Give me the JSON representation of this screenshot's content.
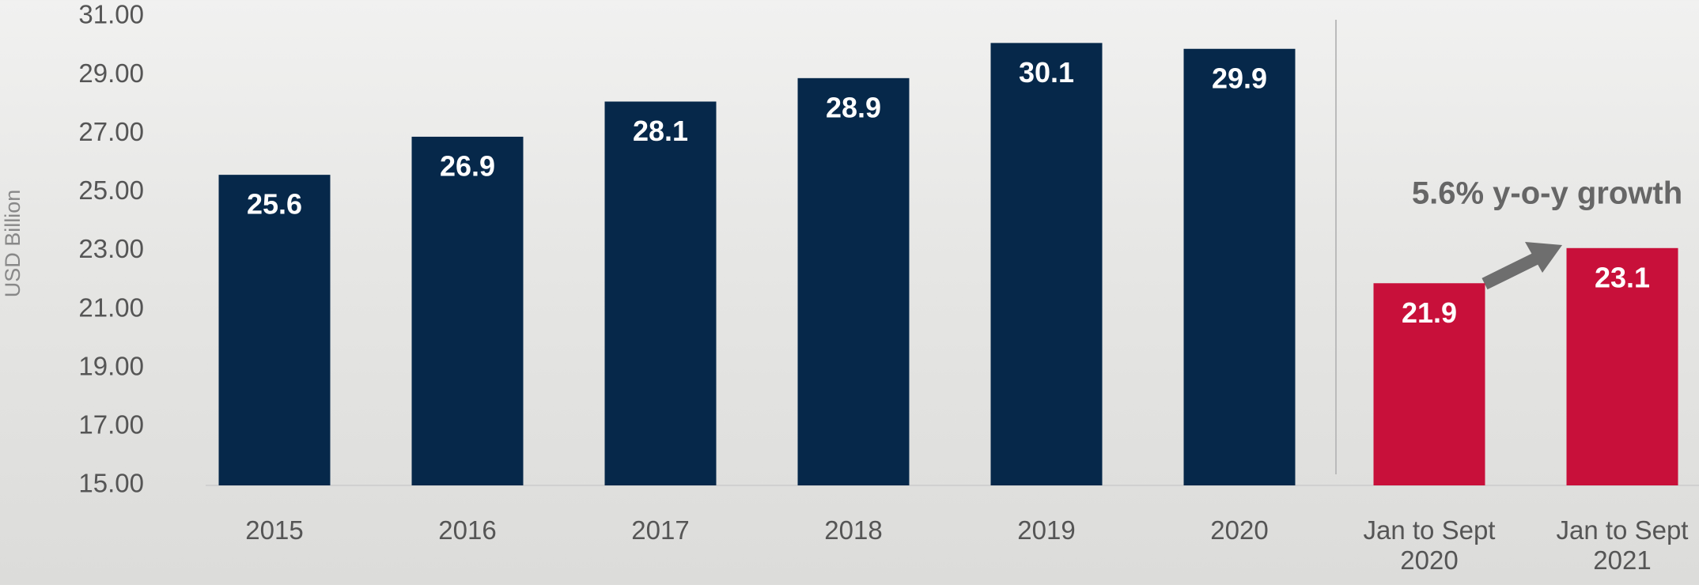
{
  "chart_data": {
    "type": "bar",
    "y_label": "USD Billion",
    "annotation": "5.6% y-o-y growth",
    "categories": [
      "2015",
      "2016",
      "2017",
      "2018",
      "2019",
      "2020",
      "Jan to Sept 2020",
      "Jan to Sept 2021"
    ],
    "values": [
      25.6,
      26.9,
      28.1,
      28.9,
      30.1,
      29.9,
      21.9,
      23.1
    ],
    "colors": [
      "#06284a",
      "#06284a",
      "#06284a",
      "#06284a",
      "#06284a",
      "#06284a",
      "#c8103a",
      "#c8103a"
    ],
    "ylim": [
      15,
      31
    ],
    "yticks": [
      {
        "value": 15,
        "label": "15.00"
      },
      {
        "value": 17,
        "label": "17.00"
      },
      {
        "value": 19,
        "label": "19.00"
      },
      {
        "value": 21,
        "label": "21.00"
      },
      {
        "value": 23,
        "label": "23.00"
      },
      {
        "value": 25,
        "label": "25.00"
      },
      {
        "value": 27,
        "label": "27.00"
      },
      {
        "value": 29,
        "label": "29.00"
      },
      {
        "value": 31,
        "label": "31.00"
      }
    ],
    "grid": false
  }
}
